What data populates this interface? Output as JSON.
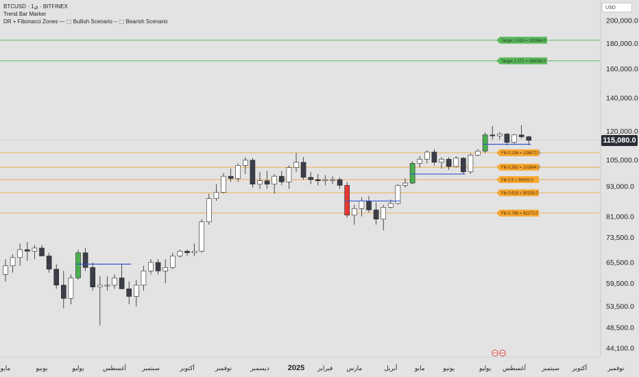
{
  "header": {
    "symbol_line": "BTCUSD · 1ي · BITFINEX",
    "indicator1": "Trend Bar Marker",
    "indicator2": "DR + Fibonacci Zones — ⬚ Bullish Scenario -- ⬚ Bearish Scenario",
    "currency": "USD"
  },
  "colors": {
    "background": "#e3e3e3",
    "candle_up": "#ffffff",
    "candle_down": "#3c3f4a",
    "marker_bull": "#4caf50",
    "marker_bear": "#e53935",
    "fib_line": "#f0a030",
    "fib_label": "#f7a731",
    "target_line": "#5cb85c",
    "target_label": "#5cb85c",
    "dr_line": "#3355cc",
    "last_price": "#2a2d36"
  },
  "chart_data": {
    "type": "candlestick",
    "y_scale": "log",
    "ylim": [
      40000,
      215000
    ],
    "y_ticks": [
      {
        "value": 200000,
        "label": "200,000.0"
      },
      {
        "value": 180000,
        "label": "180,000.0"
      },
      {
        "value": 160000,
        "label": "160,000.0"
      },
      {
        "value": 140000,
        "label": "140,000.0"
      },
      {
        "value": 120000,
        "label": "120,000.0"
      },
      {
        "value": 105000,
        "label": "105,000.0"
      },
      {
        "value": 93000,
        "label": "93,000.0"
      },
      {
        "value": 81000,
        "label": "81,000.0"
      },
      {
        "value": 73500,
        "label": "73,500.0"
      },
      {
        "value": 65500,
        "label": "65,500.0"
      },
      {
        "value": 59500,
        "label": "59,500.0"
      },
      {
        "value": 53500,
        "label": "53,500.0"
      },
      {
        "value": 48500,
        "label": "48,500.0"
      },
      {
        "value": 44100,
        "label": "44,100.0"
      }
    ],
    "x_ticks": [
      "مايو",
      "يونيو",
      "يوليو",
      "أغسطس",
      "سبتمبر",
      "أكتوبر",
      "نوفمبر",
      "ديسمبر",
      "2025",
      "فبراير",
      "مارس",
      "أبريل",
      "مايو",
      "يونيو",
      "يوليو",
      "أغسطس",
      "سبتمبر",
      "أكتوبر",
      "نوفمبر"
    ],
    "x_tick_weeks": [
      0,
      5,
      10,
      15,
      20,
      25,
      30,
      35,
      40,
      44,
      48,
      53,
      57,
      61,
      66,
      70,
      75,
      79,
      84
    ],
    "last_price": {
      "value": 115080,
      "label": "115,080.0"
    },
    "candles": [
      {
        "o": 62000,
        "h": 66500,
        "l": 60000,
        "c": 64500
      },
      {
        "o": 64500,
        "h": 68000,
        "l": 62500,
        "c": 67000
      },
      {
        "o": 67000,
        "h": 71500,
        "l": 64500,
        "c": 69500
      },
      {
        "o": 69500,
        "h": 72000,
        "l": 66000,
        "c": 69000
      },
      {
        "o": 69000,
        "h": 71000,
        "l": 66500,
        "c": 70000
      },
      {
        "o": 70000,
        "h": 71000,
        "l": 67500,
        "c": 67500
      },
      {
        "o": 67500,
        "h": 68500,
        "l": 62500,
        "c": 63500
      },
      {
        "o": 63500,
        "h": 65000,
        "l": 58000,
        "c": 59000
      },
      {
        "o": 59000,
        "h": 63000,
        "l": 53000,
        "c": 55500
      },
      {
        "o": 55500,
        "h": 62000,
        "l": 54000,
        "c": 61000
      },
      {
        "o": 61000,
        "h": 69500,
        "l": 60500,
        "c": 68500,
        "marker": "bull"
      },
      {
        "o": 68500,
        "h": 70000,
        "l": 63000,
        "c": 64000
      },
      {
        "o": 64000,
        "h": 65500,
        "l": 57500,
        "c": 58500
      },
      {
        "o": 58500,
        "h": 61500,
        "l": 49000,
        "c": 59000
      },
      {
        "o": 59000,
        "h": 61500,
        "l": 57500,
        "c": 59000
      },
      {
        "o": 59000,
        "h": 62000,
        "l": 58000,
        "c": 61000
      },
      {
        "o": 61000,
        "h": 65000,
        "l": 58000,
        "c": 58000
      },
      {
        "o": 58000,
        "h": 60000,
        "l": 54000,
        "c": 56000
      },
      {
        "o": 56000,
        "h": 60500,
        "l": 53500,
        "c": 59000
      },
      {
        "o": 59000,
        "h": 64500,
        "l": 57500,
        "c": 63000
      },
      {
        "o": 63000,
        "h": 66500,
        "l": 62000,
        "c": 65500
      },
      {
        "o": 65500,
        "h": 66500,
        "l": 62000,
        "c": 63000
      },
      {
        "o": 63000,
        "h": 66500,
        "l": 59500,
        "c": 64000
      },
      {
        "o": 64000,
        "h": 68500,
        "l": 63500,
        "c": 67500
      },
      {
        "o": 67500,
        "h": 69500,
        "l": 67000,
        "c": 69000
      },
      {
        "o": 69000,
        "h": 69500,
        "l": 67500,
        "c": 68500
      },
      {
        "o": 68500,
        "h": 71500,
        "l": 67500,
        "c": 69000
      },
      {
        "o": 69000,
        "h": 80000,
        "l": 68500,
        "c": 79000
      },
      {
        "o": 79000,
        "h": 90000,
        "l": 78000,
        "c": 88000
      },
      {
        "o": 88000,
        "h": 94000,
        "l": 87000,
        "c": 90500
      },
      {
        "o": 90500,
        "h": 99000,
        "l": 90000,
        "c": 97500
      },
      {
        "o": 97500,
        "h": 101000,
        "l": 95000,
        "c": 96500
      },
      {
        "o": 96500,
        "h": 103500,
        "l": 95000,
        "c": 102500
      },
      {
        "o": 102500,
        "h": 106500,
        "l": 98500,
        "c": 105000
      },
      {
        "o": 105000,
        "h": 106000,
        "l": 92500,
        "c": 94000
      },
      {
        "o": 94000,
        "h": 99500,
        "l": 92000,
        "c": 95500
      },
      {
        "o": 95500,
        "h": 100000,
        "l": 92000,
        "c": 94000
      },
      {
        "o": 94000,
        "h": 98500,
        "l": 90000,
        "c": 97500
      },
      {
        "o": 97500,
        "h": 100000,
        "l": 93500,
        "c": 95000
      },
      {
        "o": 95000,
        "h": 102500,
        "l": 92000,
        "c": 101500
      },
      {
        "o": 101500,
        "h": 108500,
        "l": 99500,
        "c": 104000
      },
      {
        "o": 104000,
        "h": 106500,
        "l": 96000,
        "c": 97000
      },
      {
        "o": 97000,
        "h": 99500,
        "l": 94000,
        "c": 96000
      },
      {
        "o": 96000,
        "h": 98500,
        "l": 93500,
        "c": 95500
      },
      {
        "o": 95500,
        "h": 98000,
        "l": 93500,
        "c": 96000
      },
      {
        "o": 96000,
        "h": 97500,
        "l": 94000,
        "c": 96000
      },
      {
        "o": 96000,
        "h": 97000,
        "l": 92000,
        "c": 93500
      },
      {
        "o": 93500,
        "h": 95000,
        "l": 80500,
        "c": 81500,
        "marker": "bear"
      },
      {
        "o": 81500,
        "h": 85500,
        "l": 78000,
        "c": 84000
      },
      {
        "o": 84000,
        "h": 88500,
        "l": 81000,
        "c": 87000
      },
      {
        "o": 87000,
        "h": 89000,
        "l": 82500,
        "c": 83500
      },
      {
        "o": 83500,
        "h": 86500,
        "l": 78000,
        "c": 80000
      },
      {
        "o": 80000,
        "h": 85500,
        "l": 76000,
        "c": 84500
      },
      {
        "o": 84500,
        "h": 87500,
        "l": 84000,
        "c": 86000
      },
      {
        "o": 86000,
        "h": 94000,
        "l": 85500,
        "c": 93500
      },
      {
        "o": 93500,
        "h": 96500,
        "l": 92500,
        "c": 94500
      },
      {
        "o": 94500,
        "h": 104500,
        "l": 94000,
        "c": 103500,
        "marker": "bull"
      },
      {
        "o": 103500,
        "h": 107000,
        "l": 101500,
        "c": 105500
      },
      {
        "o": 105500,
        "h": 110000,
        "l": 103500,
        "c": 109000
      },
      {
        "o": 109000,
        "h": 110500,
        "l": 102500,
        "c": 104000
      },
      {
        "o": 104000,
        "h": 106500,
        "l": 101000,
        "c": 105500
      },
      {
        "o": 105500,
        "h": 106500,
        "l": 100500,
        "c": 102000
      },
      {
        "o": 102000,
        "h": 107000,
        "l": 101500,
        "c": 106000
      },
      {
        "o": 106000,
        "h": 106500,
        "l": 98500,
        "c": 99500
      },
      {
        "o": 99500,
        "h": 108500,
        "l": 98500,
        "c": 107500
      },
      {
        "o": 107500,
        "h": 110500,
        "l": 107000,
        "c": 109500
      },
      {
        "o": 109500,
        "h": 119500,
        "l": 108500,
        "c": 118000,
        "marker": "bull"
      },
      {
        "o": 118000,
        "h": 123000,
        "l": 115500,
        "c": 117500
      },
      {
        "o": 117500,
        "h": 119500,
        "l": 115500,
        "c": 118500
      },
      {
        "o": 118500,
        "h": 119000,
        "l": 112500,
        "c": 114000
      },
      {
        "o": 114000,
        "h": 118500,
        "l": 113000,
        "c": 118000
      },
      {
        "o": 118000,
        "h": 123500,
        "l": 116000,
        "c": 117000
      },
      {
        "o": 117000,
        "h": 117500,
        "l": 112500,
        "c": 115080
      }
    ],
    "fib_levels": [
      {
        "label": "Fib 0.236 = 108672.0",
        "value": 108672
      },
      {
        "label": "Fib 0.382 = 101664.0",
        "value": 101664
      },
      {
        "label": "Fib 0.5   = 96000.0",
        "value": 96000
      },
      {
        "label": "Fib 0.618 = 90336.0",
        "value": 90336
      },
      {
        "label": "Fib 0.786 = 82272.0",
        "value": 82272
      }
    ],
    "targets": [
      {
        "label": "Target 1.618 = 182664.0",
        "value": 182664
      },
      {
        "label": "Target 1.272 = 166056.0",
        "value": 166056
      }
    ],
    "dr_segments": [
      {
        "from": 10,
        "to": 17,
        "value": 65000
      },
      {
        "from": 47,
        "to": 54,
        "value": 87000
      },
      {
        "from": 56,
        "to": 63,
        "value": 98500
      },
      {
        "from": 66,
        "to": 72,
        "value": 113000
      }
    ]
  }
}
